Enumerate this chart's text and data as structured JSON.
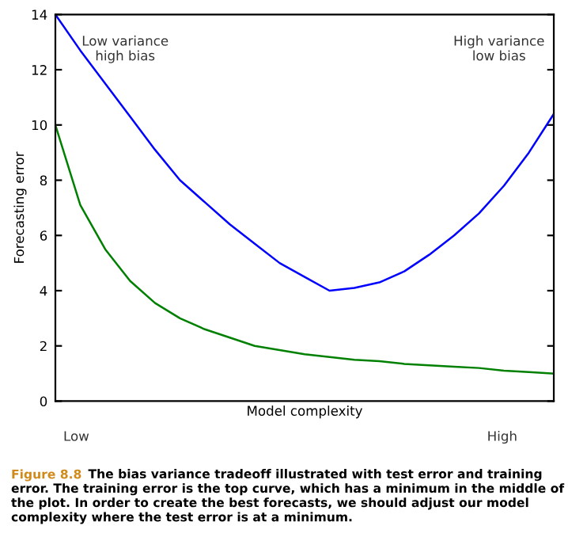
{
  "chart_data": {
    "type": "line",
    "xlabel": "Model complexity",
    "ylabel": "Forecasting error",
    "categories": [
      null,
      null,
      null,
      null,
      null,
      null,
      null,
      null,
      null,
      null,
      null,
      null,
      null,
      null,
      null,
      null,
      null,
      null,
      null,
      null,
      null
    ],
    "series": [
      {
        "color": "#0000ff",
        "values": [
          14,
          12.7,
          11.5,
          10.3,
          9.1,
          8.0,
          7.2,
          6.4,
          5.7,
          5.0,
          4.5,
          4.0,
          4.1,
          4.3,
          4.7,
          5.3,
          6.0,
          6.8,
          7.8,
          9.0,
          10.4
        ]
      },
      {
        "color": "#008000",
        "values": [
          10.0,
          7.1,
          5.5,
          4.35,
          3.55,
          3.0,
          2.6,
          2.3,
          2.0,
          1.85,
          1.7,
          1.6,
          1.5,
          1.45,
          1.35,
          1.3,
          1.25,
          1.2,
          1.1,
          1.05,
          1.0
        ]
      }
    ],
    "ylim": [
      0,
      14
    ],
    "yticks": [
      0,
      2,
      4,
      6,
      8,
      10,
      12,
      14
    ],
    "tick_labels": "y",
    "grid": false,
    "legend": false,
    "marker": "none",
    "line_style": "solid",
    "annotations": [
      "Low variance\nhigh bias",
      "High variance\nlow bias",
      "Low",
      "High",
      "Figure 8.8",
      "The bias variance tradeoff illustrated with test error and training error. The training error is the top curve, which has a minimum in the middle of the plot. In order to create the best forecasts, we should adjust our model complexity where the test error is at a minimum."
    ]
  }
}
